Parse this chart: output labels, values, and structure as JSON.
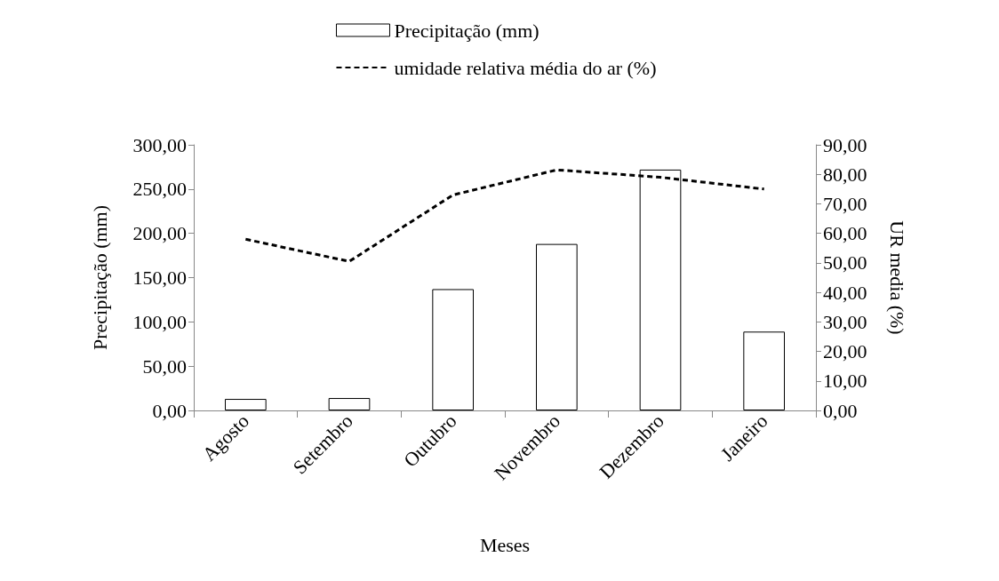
{
  "chart_data": {
    "type": "bar",
    "xlabel": "Meses",
    "ylabel": "Precipitação (mm)",
    "y2label": "UR media (%)",
    "categories": [
      "Agosto",
      "Setembro",
      "Outubro",
      "Novembro",
      "Dezembro",
      "Janeiro"
    ],
    "series": [
      {
        "name": "Precipitação (mm)",
        "color": "#ffffff",
        "values": [
          13,
          14,
          137,
          188,
          272,
          89
        ]
      },
      {
        "name": "umidade relativa média do ar (%)",
        "type": "line",
        "axis": "y2",
        "color": "#000000",
        "line_style": "dashed",
        "values": [
          58,
          50.5,
          73,
          81.5,
          79,
          75
        ]
      }
    ],
    "ylim": [
      0,
      300
    ],
    "yticks": [
      {
        "value": 0,
        "label": "0,00"
      },
      {
        "value": 50,
        "label": "50,00"
      },
      {
        "value": 100,
        "label": "100,00"
      },
      {
        "value": 150,
        "label": "150,00"
      },
      {
        "value": 200,
        "label": "200,00"
      },
      {
        "value": 250,
        "label": "250,00"
      },
      {
        "value": 300,
        "label": "300,00"
      }
    ],
    "y2lim": [
      0,
      90
    ],
    "y2ticks": [
      {
        "value": 0,
        "label": "0,00"
      },
      {
        "value": 10,
        "label": "10,00"
      },
      {
        "value": 20,
        "label": "20,00"
      },
      {
        "value": 30,
        "label": "30,00"
      },
      {
        "value": 40,
        "label": "40,00"
      },
      {
        "value": 50,
        "label": "50,00"
      },
      {
        "value": 60,
        "label": "60,00"
      },
      {
        "value": 70,
        "label": "70,00"
      },
      {
        "value": 80,
        "label": "80,00"
      },
      {
        "value": 90,
        "label": "90,00"
      }
    ],
    "grid": false,
    "legend": "top",
    "marker": "none"
  }
}
